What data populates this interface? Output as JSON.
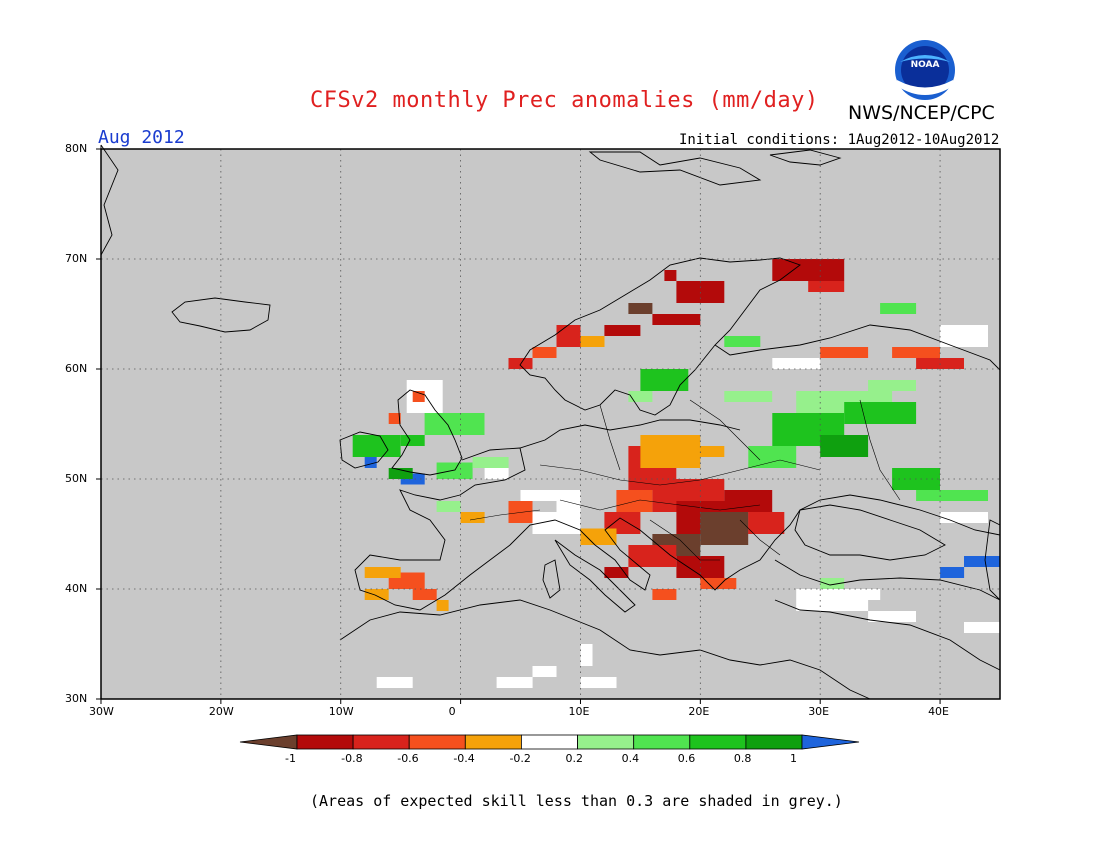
{
  "header": {
    "title": "CFSv2 monthly Prec anomalies (mm/day)",
    "org": "NWS/NCEP/CPC",
    "logo_text": "NOAA",
    "month": "Aug 2012",
    "initial_conditions": "Initial conditions: 1Aug2012-10Aug2012"
  },
  "map": {
    "lat_labels": [
      "80N",
      "70N",
      "60N",
      "50N",
      "40N",
      "30N"
    ],
    "lon_labels": [
      "30W",
      "20W",
      "10W",
      "0",
      "10E",
      "20E",
      "30E",
      "40E"
    ],
    "lon_range": [
      -30,
      45
    ],
    "lat_range": [
      30,
      80
    ],
    "skill_mask_color": "#c8c8c8"
  },
  "colorbar": {
    "labels": [
      "-1",
      "-0.8",
      "-0.6",
      "-0.4",
      "-0.2",
      "0.2",
      "0.4",
      "0.6",
      "0.8",
      "1"
    ],
    "colors": [
      "#6b3f2d",
      "#b30a0a",
      "#d8231c",
      "#f5501e",
      "#f5a20a",
      "#ffffff",
      "#96f08c",
      "#50e450",
      "#1ec31e",
      "#0fa00f",
      "#1e64dc"
    ]
  },
  "footnote": "(Areas of expected skill less than 0.3 are shaded in grey.)"
}
